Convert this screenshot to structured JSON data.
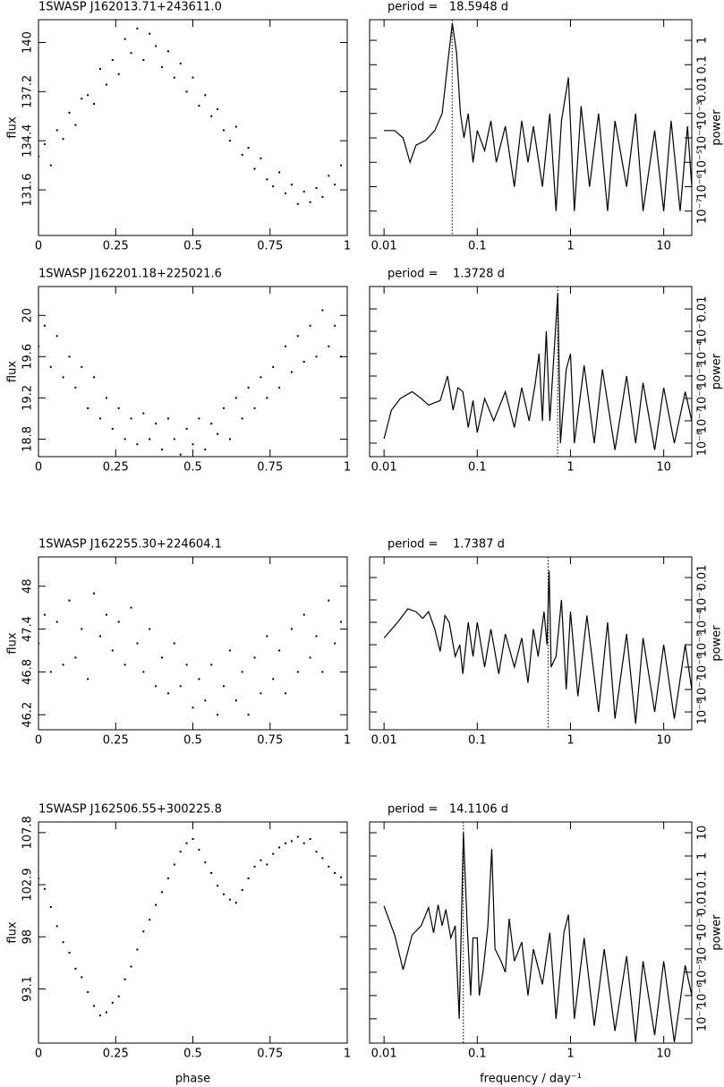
{
  "chart_data": [
    {
      "type": "scatter",
      "title": "1SWASP J162013.71+243611.0",
      "y_label": "flux",
      "color": "#000000",
      "x": [
        0,
        0.02,
        0.04,
        0.06,
        0.08,
        0.1,
        0.12,
        0.14,
        0.16,
        0.18,
        0.2,
        0.22,
        0.24,
        0.26,
        0.28,
        0.3,
        0.32,
        0.34,
        0.36,
        0.38,
        0.4,
        0.42,
        0.44,
        0.46,
        0.48,
        0.5,
        0.52,
        0.54,
        0.56,
        0.58,
        0.6,
        0.62,
        0.64,
        0.66,
        0.68,
        0.7,
        0.72,
        0.74,
        0.76,
        0.78,
        0.8,
        0.82,
        0.84,
        0.86,
        0.88,
        0.9,
        0.92,
        0.94,
        0.96,
        0.98
      ],
      "values": [
        133.5,
        134.2,
        133.0,
        135.0,
        134.5,
        136.0,
        135.3,
        136.8,
        137.0,
        136.5,
        138.5,
        137.6,
        139.0,
        138.2,
        140.2,
        139.4,
        140.8,
        139.0,
        140.5,
        139.8,
        138.6,
        139.5,
        138.0,
        138.8,
        137.2,
        138.0,
        136.4,
        137.0,
        135.8,
        136.2,
        135.0,
        134.4,
        135.2,
        133.6,
        134.0,
        132.8,
        133.4,
        132.2,
        131.8,
        132.6,
        131.4,
        131.9,
        130.8,
        131.5,
        130.9,
        131.7,
        131.2,
        132.4,
        131.9,
        133.0
      ],
      "xlim": [
        0,
        1
      ],
      "xticks": [
        0,
        0.25,
        0.5,
        0.75,
        1
      ],
      "ylim": [
        129,
        141.3
      ],
      "yticks": [
        131.6,
        134.4,
        137.2,
        140
      ]
    },
    {
      "type": "line",
      "title": "period =   18.5948 d",
      "y_label": "power",
      "color": "#000000",
      "xscale": "log",
      "yscale": "log",
      "vline": 0.0538,
      "x": [
        0.01,
        0.013,
        0.016,
        0.019,
        0.022,
        0.028,
        0.035,
        0.042,
        0.048,
        0.054,
        0.06,
        0.066,
        0.072,
        0.08,
        0.09,
        0.1,
        0.12,
        0.14,
        0.16,
        0.2,
        0.25,
        0.3,
        0.35,
        0.4,
        0.5,
        0.6,
        0.7,
        0.8,
        0.95,
        1.1,
        1.3,
        1.6,
        2,
        2.5,
        3,
        4,
        5,
        6,
        8,
        10,
        12,
        15,
        18,
        20
      ],
      "values": [
        0.0002,
        0.0002,
        0.0001,
        1e-05,
        5e-05,
        8e-05,
        0.0002,
        0.001,
        0.1,
        5,
        0.3,
        0.001,
        0.0001,
        0.001,
        1e-05,
        0.0002,
        3e-05,
        0.0005,
        1e-05,
        0.0003,
        1e-06,
        0.0005,
        1e-05,
        0.0003,
        1e-06,
        0.001,
        1e-07,
        0.0005,
        0.03,
        1e-07,
        0.002,
        1e-06,
        0.001,
        1e-07,
        0.0005,
        1e-06,
        0.001,
        1e-07,
        0.0002,
        1e-07,
        0.0005,
        1e-07,
        0.0003,
        1e-06
      ],
      "xlim": [
        0.007,
        20
      ],
      "xticks": [
        0.01,
        0.1,
        1,
        10
      ],
      "ylim": [
        1e-08,
        7
      ],
      "yticks": [
        {
          "value": 1e-07,
          "label": "10⁻⁷"
        },
        {
          "value": 1e-06,
          "label": "10⁻⁶"
        },
        {
          "value": 1e-05,
          "label": "10⁻⁵"
        },
        {
          "value": 0.0001,
          "label": "10⁻⁴"
        },
        {
          "value": 0.001,
          "label": "10⁻³"
        },
        0.01,
        0.1,
        1
      ]
    },
    {
      "type": "scatter",
      "title": "1SWASP J162201.18+225021.6",
      "y_label": "flux",
      "color": "#000000",
      "x": [
        0,
        0.02,
        0.04,
        0.06,
        0.08,
        0.1,
        0.12,
        0.14,
        0.16,
        0.18,
        0.2,
        0.22,
        0.24,
        0.26,
        0.28,
        0.3,
        0.32,
        0.34,
        0.36,
        0.38,
        0.4,
        0.42,
        0.44,
        0.46,
        0.48,
        0.5,
        0.52,
        0.54,
        0.56,
        0.58,
        0.6,
        0.62,
        0.64,
        0.66,
        0.68,
        0.7,
        0.72,
        0.74,
        0.76,
        0.78,
        0.8,
        0.82,
        0.84,
        0.86,
        0.88,
        0.9,
        0.92,
        0.94,
        0.96,
        0.98
      ],
      "values": [
        19.7,
        19.9,
        19.5,
        19.8,
        19.4,
        19.6,
        19.3,
        19.5,
        19.1,
        19.4,
        19.0,
        19.2,
        18.9,
        19.1,
        18.8,
        19.0,
        18.75,
        19.05,
        18.8,
        18.95,
        18.7,
        19.0,
        18.8,
        18.65,
        18.9,
        18.75,
        19.0,
        18.7,
        18.95,
        18.85,
        19.1,
        18.8,
        19.2,
        19.0,
        19.3,
        19.1,
        19.4,
        19.2,
        19.5,
        19.3,
        19.7,
        19.45,
        19.8,
        19.55,
        19.9,
        19.6,
        20.05,
        19.7,
        19.9,
        19.6
      ],
      "xlim": [
        0,
        1
      ],
      "xticks": [
        0,
        0.25,
        0.5,
        0.75,
        1
      ],
      "ylim": [
        18.63,
        20.28
      ],
      "yticks": [
        18.8,
        19.2,
        19.6,
        20
      ]
    },
    {
      "type": "line",
      "title": "period =    1.3728 d",
      "y_label": "power",
      "color": "#000000",
      "xscale": "log",
      "yscale": "log",
      "vline": 0.7284,
      "x": [
        0.01,
        0.012,
        0.015,
        0.02,
        0.025,
        0.03,
        0.04,
        0.048,
        0.055,
        0.062,
        0.07,
        0.08,
        0.09,
        0.1,
        0.12,
        0.15,
        0.2,
        0.25,
        0.3,
        0.36,
        0.42,
        0.46,
        0.5,
        0.55,
        0.6,
        0.65,
        0.73,
        0.78,
        0.9,
        1.0,
        1.1,
        1.4,
        1.8,
        2.2,
        3,
        4,
        5,
        6,
        8,
        10,
        13,
        17,
        20
      ],
      "values": [
        1.6e-08,
        3e-07,
        1e-06,
        2e-06,
        1e-06,
        5e-07,
        8e-07,
        1e-05,
        3e-07,
        3e-06,
        2e-06,
        5e-08,
        8e-07,
        3e-08,
        1e-06,
        1e-07,
        2e-06,
        5e-08,
        3e-06,
        1e-07,
        5e-06,
        0.0001,
        1e-07,
        0.001,
        1e-07,
        2e-05,
        0.05,
        1e-08,
        2e-05,
        0.0001,
        1e-08,
        3e-05,
        1e-08,
        2e-05,
        5e-09,
        1e-05,
        1e-08,
        5e-06,
        5e-09,
        3e-06,
        1e-08,
        2e-06,
        1e-07
      ],
      "xlim": [
        0.007,
        20
      ],
      "xticks": [
        0.01,
        0.1,
        1,
        10
      ],
      "ylim": [
        2.5e-09,
        0.1
      ],
      "yticks": [
        {
          "value": 1e-08,
          "label": "10⁻⁸"
        },
        {
          "value": 1e-07,
          "label": "10⁻⁷"
        },
        {
          "value": 1e-06,
          "label": "10⁻⁶"
        },
        {
          "value": 1e-05,
          "label": "10⁻⁵"
        },
        {
          "value": 0.0001,
          "label": "10⁻⁴"
        },
        {
          "value": 0.001,
          "label": "10⁻³"
        },
        0.01
      ]
    },
    {
      "type": "scatter",
      "title": "1SWASP J162255.30+224604.1",
      "y_label": "flux",
      "color": "#000000",
      "x": [
        0,
        0.02,
        0.04,
        0.06,
        0.08,
        0.1,
        0.12,
        0.14,
        0.16,
        0.18,
        0.2,
        0.22,
        0.24,
        0.26,
        0.28,
        0.3,
        0.32,
        0.34,
        0.36,
        0.38,
        0.4,
        0.42,
        0.44,
        0.46,
        0.48,
        0.5,
        0.52,
        0.54,
        0.56,
        0.58,
        0.6,
        0.62,
        0.64,
        0.66,
        0.68,
        0.7,
        0.72,
        0.74,
        0.76,
        0.78,
        0.8,
        0.82,
        0.84,
        0.86,
        0.88,
        0.9,
        0.92,
        0.94,
        0.96,
        0.98
      ],
      "values": [
        47.2,
        47.6,
        46.8,
        47.5,
        46.9,
        47.8,
        47.0,
        47.4,
        46.7,
        47.9,
        47.3,
        47.6,
        47.1,
        47.5,
        46.9,
        47.7,
        47.2,
        46.8,
        47.4,
        46.6,
        47.0,
        46.5,
        47.2,
        46.6,
        46.9,
        46.3,
        46.7,
        46.4,
        46.9,
        46.2,
        46.6,
        47.1,
        46.4,
        46.8,
        46.2,
        47.0,
        46.5,
        47.3,
        46.7,
        47.1,
        46.5,
        47.4,
        46.8,
        47.6,
        47.0,
        47.3,
        46.8,
        47.8,
        47.2,
        47.5
      ],
      "xlim": [
        0,
        1
      ],
      "xticks": [
        0,
        0.25,
        0.5,
        0.75,
        1
      ],
      "ylim": [
        45.99,
        48.41
      ],
      "yticks": [
        46.2,
        46.8,
        47.4,
        48
      ]
    },
    {
      "type": "line",
      "title": "period =    1.7387 d",
      "y_label": "power",
      "color": "#000000",
      "xscale": "log",
      "yscale": "log",
      "vline": 0.5751,
      "x": [
        0.01,
        0.014,
        0.018,
        0.022,
        0.026,
        0.03,
        0.035,
        0.04,
        0.045,
        0.05,
        0.058,
        0.065,
        0.07,
        0.08,
        0.09,
        0.1,
        0.12,
        0.14,
        0.17,
        0.2,
        0.25,
        0.3,
        0.35,
        0.4,
        0.45,
        0.52,
        0.56,
        0.59,
        0.62,
        0.7,
        0.8,
        0.9,
        1.0,
        1.2,
        1.5,
        2,
        2.5,
        3,
        4,
        5,
        6,
        8,
        10,
        13,
        17,
        20
      ],
      "values": [
        2e-05,
        0.0001,
        0.0004,
        0.0003,
        0.00015,
        0.0003,
        5e-05,
        5e-06,
        0.0002,
        0.0001,
        3e-06,
        1e-05,
        5e-07,
        0.0001,
        3e-06,
        0.0001,
        1e-06,
        5e-05,
        5e-07,
        3e-05,
        1e-06,
        2e-05,
        2e-07,
        5e-05,
        3e-06,
        0.0003,
        1e-05,
        0.02,
        1e-06,
        3e-06,
        0.001,
        1e-07,
        0.0003,
        5e-08,
        0.0002,
        1e-08,
        0.0001,
        5e-09,
        3e-05,
        3e-09,
        2e-05,
        1e-08,
        1e-05,
        5e-09,
        1e-05,
        1e-07
      ],
      "xlim": [
        0.007,
        20
      ],
      "xticks": [
        0.01,
        0.1,
        1,
        10
      ],
      "ylim": [
        1.6e-09,
        0.083
      ],
      "yticks": [
        {
          "value": 1e-08,
          "label": "10⁻⁸"
        },
        {
          "value": 1e-07,
          "label": "10⁻⁷"
        },
        {
          "value": 1e-06,
          "label": "10⁻⁶"
        },
        {
          "value": 1e-05,
          "label": "10⁻⁵"
        },
        {
          "value": 0.0001,
          "label": "10⁻⁴"
        },
        {
          "value": 0.001,
          "label": "10⁻³"
        },
        0.01
      ]
    },
    {
      "type": "scatter",
      "title": "1SWASP J162506.55+300225.8",
      "y_label": "flux",
      "x_label": "phase",
      "color": "#000000",
      "x": [
        0,
        0.02,
        0.04,
        0.06,
        0.08,
        0.1,
        0.12,
        0.14,
        0.16,
        0.18,
        0.2,
        0.22,
        0.24,
        0.26,
        0.28,
        0.3,
        0.32,
        0.34,
        0.36,
        0.38,
        0.4,
        0.42,
        0.44,
        0.46,
        0.48,
        0.5,
        0.52,
        0.54,
        0.56,
        0.58,
        0.6,
        0.62,
        0.64,
        0.66,
        0.68,
        0.7,
        0.72,
        0.74,
        0.76,
        0.78,
        0.8,
        0.82,
        0.84,
        0.86,
        0.88,
        0.9,
        0.92,
        0.94,
        0.96,
        0.98
      ],
      "values": [
        103.5,
        102.5,
        100.8,
        99.0,
        97.5,
        96.5,
        95.0,
        94.2,
        92.8,
        91.5,
        90.6,
        90.9,
        91.8,
        92.4,
        94.0,
        95.2,
        96.8,
        98.5,
        99.6,
        101.0,
        102.2,
        103.5,
        104.8,
        106.0,
        106.8,
        107.2,
        106.2,
        105.0,
        104.0,
        102.8,
        102.0,
        101.5,
        101.2,
        102.4,
        103.5,
        104.6,
        105.2,
        104.8,
        105.8,
        106.4,
        106.8,
        107.0,
        107.4,
        106.8,
        107.2,
        106.0,
        105.4,
        104.6,
        104.0,
        103.6
      ],
      "xlim": [
        0,
        1
      ],
      "xticks": [
        0,
        0.25,
        0.5,
        0.75,
        1
      ],
      "ylim": [
        88,
        108.8
      ],
      "yticks": [
        93.1,
        98,
        102.9,
        107.8
      ]
    },
    {
      "type": "line",
      "title": "period =   14.1106 d",
      "y_label": "power",
      "x_label": "frequency / day⁻¹",
      "color": "#000000",
      "xscale": "log",
      "yscale": "log",
      "vline": 0.0709,
      "x": [
        0.01,
        0.013,
        0.016,
        0.02,
        0.025,
        0.03,
        0.034,
        0.038,
        0.042,
        0.046,
        0.052,
        0.058,
        0.064,
        0.071,
        0.078,
        0.085,
        0.09,
        0.1,
        0.105,
        0.115,
        0.13,
        0.143,
        0.155,
        0.18,
        0.2,
        0.22,
        0.25,
        0.3,
        0.35,
        0.4,
        0.5,
        0.6,
        0.7,
        0.85,
        0.95,
        1.1,
        1.4,
        1.8,
        2.3,
        3,
        4,
        5,
        6,
        8,
        10,
        13,
        17,
        20
      ],
      "values": [
        0.007,
        0.0004,
        1.3e-05,
        0.0004,
        0.001,
        0.006,
        0.0005,
        0.008,
        0.001,
        0.005,
        0.0003,
        0.001,
        1e-07,
        10,
        0.001,
        1e-06,
        0.0003,
        0.0003,
        1e-06,
        1e-05,
        0.001,
        2,
        0.0001,
        3e-05,
        1e-05,
        0.002,
        3e-05,
        0.0002,
        1e-06,
        0.0001,
        3e-06,
        0.0005,
        1e-07,
        0.0005,
        0.003,
        1e-07,
        0.0003,
        5e-08,
        0.0001,
        3e-08,
        5e-05,
        1e-08,
        3e-05,
        2e-08,
        3e-05,
        1e-08,
        2e-05,
        1e-06
      ],
      "xlim": [
        0.007,
        20
      ],
      "xticks": [
        0.01,
        0.1,
        1,
        10
      ],
      "ylim": [
        9e-09,
        29
      ],
      "yticks": [
        {
          "value": 1e-07,
          "label": "10⁻⁷"
        },
        {
          "value": 1e-06,
          "label": "10⁻⁶"
        },
        {
          "value": 1e-05,
          "label": "10⁻⁵"
        },
        {
          "value": 0.0001,
          "label": "10⁻⁴"
        },
        {
          "value": 0.001,
          "label": "10⁻³"
        },
        0.01,
        0.1,
        1,
        10
      ]
    }
  ]
}
